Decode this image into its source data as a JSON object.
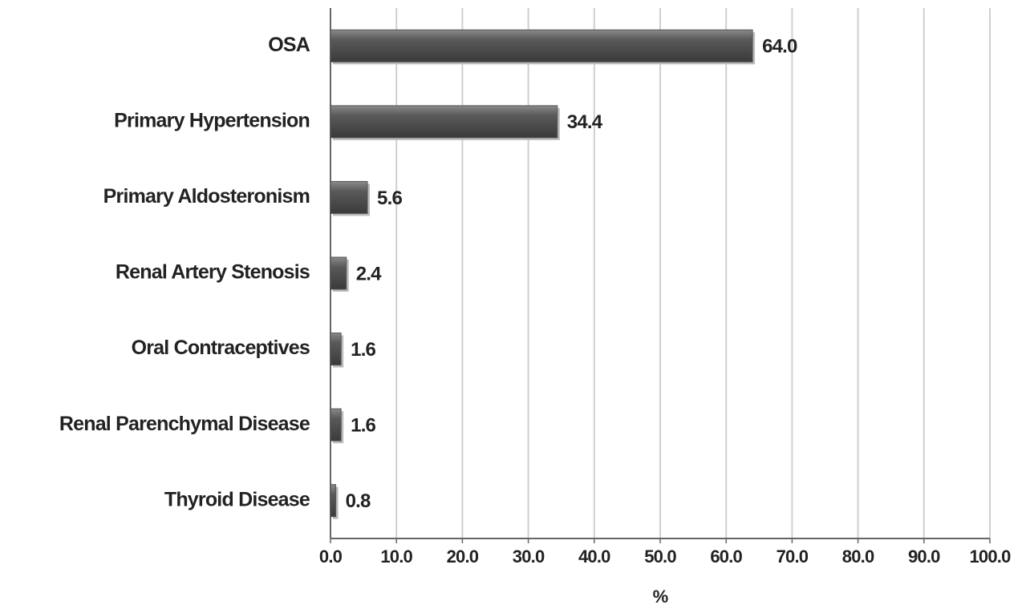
{
  "chart_data": {
    "type": "bar",
    "orientation": "horizontal",
    "x_label": "%",
    "categories": [
      "OSA",
      "Primary Hypertension",
      "Primary Aldosteronism",
      "Renal Artery Stenosis",
      "Oral Contraceptives",
      "Renal Parenchymal Disease",
      "Thyroid Disease"
    ],
    "values": [
      64.0,
      34.4,
      5.6,
      2.4,
      1.6,
      1.6,
      0.8
    ],
    "value_labels": [
      "64.0",
      "34.4",
      "5.6",
      "2.4",
      "1.6",
      "1.6",
      "0.8"
    ],
    "color": "#555555",
    "xlim": [
      0,
      100
    ],
    "xticks": [
      {
        "value": 0,
        "label": "0.0"
      },
      {
        "value": 10,
        "label": "10.0"
      },
      {
        "value": 20,
        "label": "20.0"
      },
      {
        "value": 30,
        "label": "30.0"
      },
      {
        "value": 40,
        "label": "40.0"
      },
      {
        "value": 50,
        "label": "50.0"
      },
      {
        "value": 60,
        "label": "60.0"
      },
      {
        "value": 70,
        "label": "70.0"
      },
      {
        "value": 80,
        "label": "80.0"
      },
      {
        "value": 90,
        "label": "90.0"
      },
      {
        "value": 100,
        "label": "100.0"
      }
    ],
    "grid": true
  }
}
